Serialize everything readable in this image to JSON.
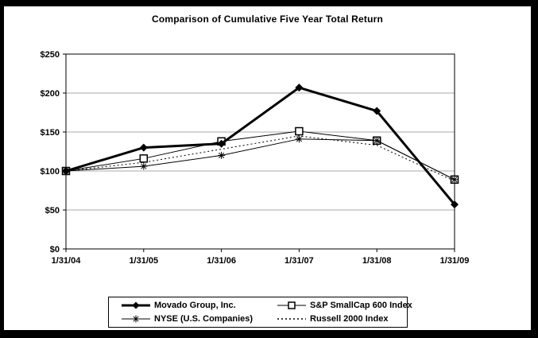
{
  "window": {
    "background": "#ffffff",
    "frame_color": "#000000"
  },
  "chart_data": {
    "type": "line",
    "title": "Comparison of Cumulative Five Year Total Return",
    "categories": [
      "1/31/04",
      "1/31/05",
      "1/31/06",
      "1/31/07",
      "1/31/08",
      "1/31/09"
    ],
    "y_axis": {
      "min": 0,
      "max": 250,
      "ticks": [
        {
          "value": 250,
          "label": "$250"
        },
        {
          "value": 200,
          "label": "$200"
        },
        {
          "value": 150,
          "label": "$150"
        },
        {
          "value": 100,
          "label": "$100"
        },
        {
          "value": 50,
          "label": "$50"
        },
        {
          "value": 0,
          "label": "$0"
        }
      ]
    },
    "grid": "horizontal",
    "legend_position": "bottom-boxed",
    "series": [
      {
        "name": "Movado Group, Inc.",
        "marker": "diamond",
        "line_style": "solid",
        "line_width": "thick",
        "values": [
          100,
          130,
          135,
          207,
          177,
          57
        ]
      },
      {
        "name": "S&P SmallCap 600 Index",
        "marker": "square",
        "line_style": "solid",
        "line_width": "thin",
        "values": [
          100,
          116,
          138,
          151,
          139,
          89
        ]
      },
      {
        "name": "NYSE (U.S. Companies)",
        "marker": "asterisk",
        "line_style": "solid",
        "line_width": "thin",
        "values": [
          100,
          106,
          120,
          141,
          139,
          89
        ]
      },
      {
        "name": "Russell 2000 Index",
        "marker": "none",
        "line_style": "dotted",
        "line_width": "thin",
        "values": [
          100,
          111,
          128,
          145,
          133,
          87
        ]
      }
    ],
    "colors": {
      "series_line": "#000000",
      "grid_line": "#aaaaaa",
      "plot_border": "#000000",
      "plot_background": "#ffffff"
    }
  }
}
